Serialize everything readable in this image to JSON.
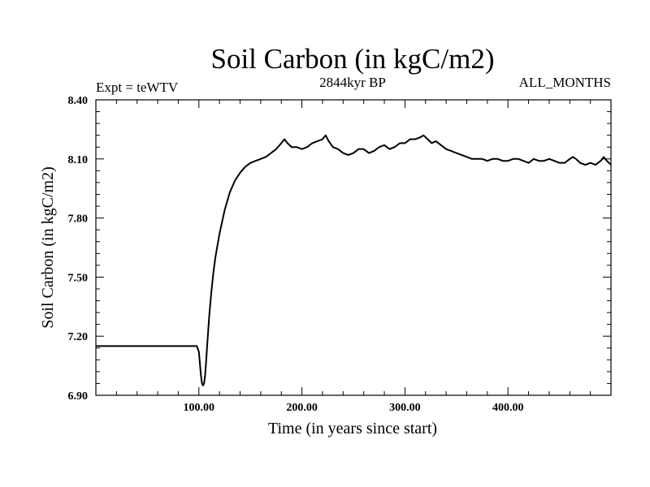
{
  "chart_data": {
    "type": "line",
    "title": "Soil Carbon (in kgC/m2)",
    "subtitle": "2844kyr BP",
    "annotation_left": "Expt = teWTV",
    "annotation_right": "ALL_MONTHS",
    "xlabel": "Time (in years since start)",
    "ylabel": "Soil Carbon (in kgC/m2)",
    "xlim": [
      0,
      500
    ],
    "ylim": [
      6.9,
      8.4
    ],
    "xticks": [
      100,
      200,
      300,
      400
    ],
    "xtick_labels": [
      "100.00",
      "200.00",
      "300.00",
      "400.00"
    ],
    "yticks": [
      6.9,
      7.2,
      7.5,
      7.8,
      8.1,
      8.4
    ],
    "ytick_labels": [
      "6.90",
      "7.20",
      "7.50",
      "7.80",
      "8.10",
      "8.40"
    ],
    "series": [
      {
        "name": "Soil Carbon",
        "x": [
          0,
          98,
          100,
          101,
          102,
          103,
          104,
          105,
          106,
          107,
          108,
          110,
          112,
          114,
          116,
          118,
          120,
          125,
          130,
          135,
          140,
          145,
          150,
          155,
          160,
          165,
          170,
          175,
          180,
          183,
          186,
          190,
          195,
          200,
          205,
          210,
          215,
          220,
          223,
          226,
          230,
          235,
          240,
          245,
          250,
          255,
          260,
          265,
          270,
          275,
          280,
          285,
          290,
          295,
          300,
          305,
          310,
          315,
          318,
          322,
          326,
          330,
          335,
          340,
          345,
          350,
          355,
          360,
          365,
          370,
          375,
          380,
          385,
          390,
          395,
          400,
          405,
          410,
          415,
          420,
          425,
          430,
          435,
          440,
          445,
          450,
          455,
          460,
          463,
          466,
          470,
          475,
          480,
          485,
          490,
          493,
          496,
          500
        ],
        "y": [
          7.15,
          7.15,
          7.12,
          7.06,
          7.0,
          6.96,
          6.95,
          6.96,
          7.0,
          7.07,
          7.15,
          7.3,
          7.42,
          7.52,
          7.6,
          7.66,
          7.72,
          7.84,
          7.93,
          7.99,
          8.03,
          8.06,
          8.08,
          8.09,
          8.1,
          8.11,
          8.13,
          8.15,
          8.18,
          8.2,
          8.18,
          8.16,
          8.16,
          8.15,
          8.16,
          8.18,
          8.19,
          8.2,
          8.22,
          8.19,
          8.16,
          8.15,
          8.13,
          8.12,
          8.13,
          8.15,
          8.15,
          8.13,
          8.14,
          8.16,
          8.17,
          8.15,
          8.16,
          8.18,
          8.18,
          8.2,
          8.2,
          8.21,
          8.22,
          8.2,
          8.18,
          8.19,
          8.17,
          8.15,
          8.14,
          8.13,
          8.12,
          8.11,
          8.1,
          8.1,
          8.1,
          8.09,
          8.1,
          8.1,
          8.09,
          8.09,
          8.1,
          8.1,
          8.09,
          8.08,
          8.1,
          8.09,
          8.09,
          8.1,
          8.09,
          8.08,
          8.08,
          8.1,
          8.11,
          8.1,
          8.08,
          8.07,
          8.08,
          8.07,
          8.09,
          8.11,
          8.09,
          8.07
        ]
      }
    ]
  },
  "style": {
    "line_color": "#000000",
    "axis_color": "#000000",
    "background": "#ffffff"
  }
}
